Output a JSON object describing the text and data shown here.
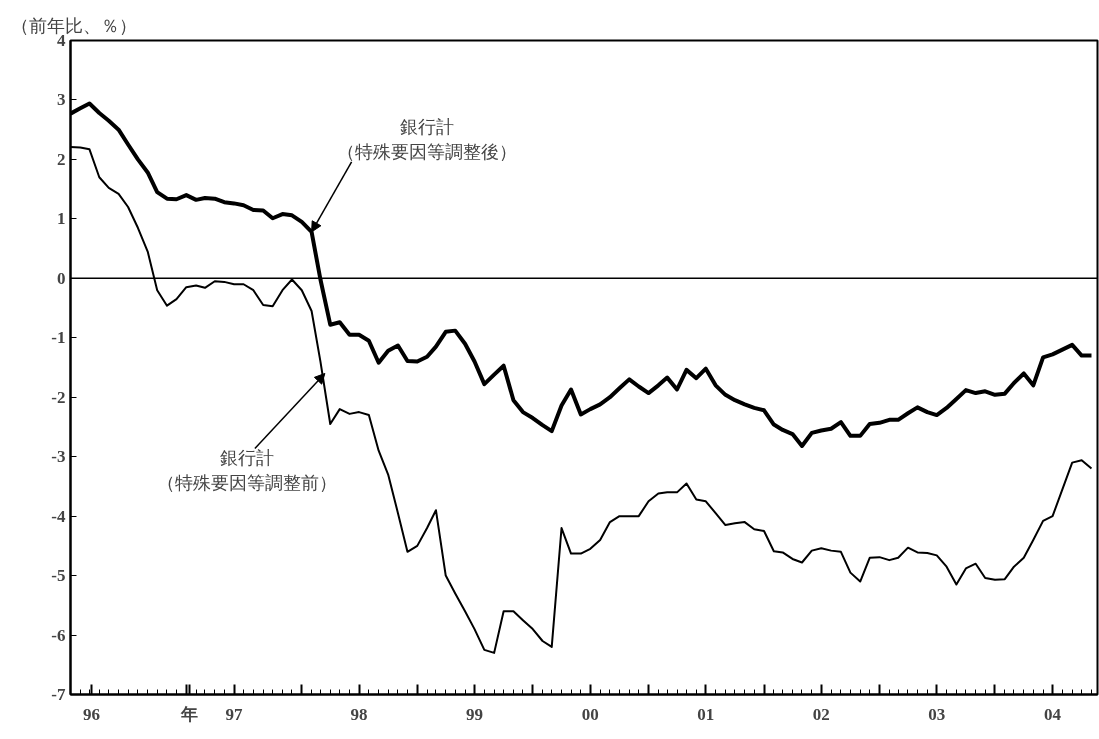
{
  "chart_data": {
    "type": "line",
    "ylabel": "（前年比、％）",
    "x": [
      "1996-01",
      "1996-02",
      "1996-03",
      "1996-04",
      "1996-05",
      "1996-06",
      "1996-07",
      "1996-08",
      "1996-09",
      "1996-10",
      "1996-11",
      "1996-12",
      "1997-01",
      "1997-02",
      "1997-03",
      "1997-04",
      "1997-05",
      "1997-06",
      "1997-07",
      "1997-08",
      "1997-09",
      "1997-10",
      "1997-11",
      "1997-12",
      "1998-01",
      "1998-02",
      "1998-03",
      "1998-04",
      "1998-05",
      "1998-06",
      "1998-07",
      "1998-08",
      "1998-09",
      "1998-10",
      "1998-11",
      "1998-12",
      "1999-01",
      "1999-02",
      "1999-03",
      "1999-04",
      "1999-05",
      "1999-06",
      "1999-07",
      "1999-08",
      "1999-09",
      "1999-10",
      "1999-11",
      "1999-12",
      "2000-01",
      "2000-02",
      "2000-03",
      "2000-04",
      "2000-05",
      "2000-06",
      "2000-07",
      "2000-08",
      "2000-09",
      "2000-10",
      "2000-11",
      "2000-12",
      "2001-01",
      "2001-02",
      "2001-03",
      "2001-04",
      "2001-05",
      "2001-06",
      "2001-07",
      "2001-08",
      "2001-09",
      "2001-10",
      "2001-11",
      "2001-12",
      "2002-01",
      "2002-02",
      "2002-03",
      "2002-04",
      "2002-05",
      "2002-06",
      "2002-07",
      "2002-08",
      "2002-09",
      "2002-10",
      "2002-11",
      "2002-12",
      "2003-01",
      "2003-02",
      "2003-03",
      "2003-04",
      "2003-05",
      "2003-06",
      "2003-07",
      "2003-08",
      "2003-09",
      "2003-10",
      "2003-11",
      "2003-12",
      "2004-01",
      "2004-02",
      "2004-03",
      "2004-04",
      "2004-05",
      "2004-06",
      "2004-07",
      "2004-08",
      "2004-09",
      "2004-10",
      "2004-11"
    ],
    "series": [
      {
        "color": "#000000",
        "values": [
          2.77,
          2.86,
          2.94,
          2.78,
          2.65,
          2.5,
          2.25,
          2.0,
          1.78,
          1.45,
          1.34,
          1.33,
          1.4,
          1.32,
          1.35,
          1.34,
          1.28,
          1.26,
          1.23,
          1.15,
          1.14,
          1.01,
          1.08,
          1.06,
          0.95,
          0.78,
          -0.02,
          -0.78,
          -0.74,
          -0.95,
          -0.95,
          -1.05,
          -1.42,
          -1.22,
          -1.13,
          -1.39,
          -1.4,
          -1.32,
          -1.15,
          -0.9,
          -0.88,
          -1.1,
          -1.4,
          -1.78,
          -1.62,
          -1.47,
          -2.05,
          -2.25,
          -2.35,
          -2.47,
          -2.57,
          -2.14,
          -1.87,
          -2.29,
          -2.2,
          -2.12,
          -2.0,
          -1.85,
          -1.7,
          -1.82,
          -1.93,
          -1.8,
          -1.67,
          -1.87,
          -1.54,
          -1.68,
          -1.52,
          -1.8,
          -1.96,
          -2.05,
          -2.12,
          -2.18,
          -2.22,
          -2.46,
          -2.55,
          -2.62,
          -2.82,
          -2.6,
          -2.56,
          -2.53,
          -2.42,
          -2.65,
          -2.65,
          -2.45,
          -2.43,
          -2.38,
          -2.38,
          -2.27,
          -2.17,
          -2.25,
          -2.3,
          -2.18,
          -2.03,
          -1.88,
          -1.93,
          -1.9,
          -1.96,
          -1.94,
          -1.76,
          -1.6,
          -1.8,
          -1.33,
          -1.28,
          -1.2,
          -1.12,
          -1.3,
          -1.3
        ]
      },
      {
        "color": "#000000",
        "values": [
          2.21,
          2.2,
          2.17,
          1.7,
          1.52,
          1.42,
          1.2,
          0.85,
          0.45,
          -0.2,
          -0.46,
          -0.35,
          -0.15,
          -0.12,
          -0.16,
          -0.05,
          -0.06,
          -0.1,
          -0.1,
          -0.2,
          -0.45,
          -0.47,
          -0.2,
          -0.02,
          -0.2,
          -0.55,
          -1.4,
          -2.45,
          -2.2,
          -2.28,
          -2.25,
          -2.3,
          -2.9,
          -3.3,
          -3.95,
          -4.6,
          -4.5,
          -4.2,
          -3.9,
          -5.0,
          -5.3,
          -5.6,
          -5.9,
          -6.25,
          -6.3,
          -5.6,
          -5.6,
          -5.75,
          -5.9,
          -6.1,
          -6.2,
          -4.2,
          -4.63,
          -4.63,
          -4.55,
          -4.4,
          -4.1,
          -4.0,
          -4.0,
          -4.0,
          -3.75,
          -3.62,
          -3.6,
          -3.6,
          -3.45,
          -3.72,
          -3.75,
          -3.95,
          -4.15,
          -4.12,
          -4.1,
          -4.22,
          -4.25,
          -4.59,
          -4.61,
          -4.72,
          -4.78,
          -4.58,
          -4.54,
          -4.58,
          -4.6,
          -4.95,
          -5.1,
          -4.7,
          -4.69,
          -4.74,
          -4.7,
          -4.53,
          -4.61,
          -4.62,
          -4.66,
          -4.85,
          -5.15,
          -4.88,
          -4.8,
          -5.04,
          -5.07,
          -5.06,
          -4.85,
          -4.7,
          -4.4,
          -4.08,
          -4.0,
          -3.55,
          -3.1,
          -3.06,
          -3.2
        ]
      }
    ],
    "annotations": [
      "銀行計",
      {
        "text": "（特殊要因等調整後）",
        "x": "1998-02",
        "y": 0.78
      },
      {
        "text": "銀行計",
        "x": "1998-03-15",
        "y": -1.6
      },
      "（特殊要因等調整前）"
    ],
    "xlim": [
      "1996-01-01",
      "2004-11-20"
    ],
    "xticks": [
      {
        "value": "1996-03-07",
        "label": "96"
      },
      {
        "value": "1997-01-10",
        "label": "年"
      },
      {
        "value": "1997-06",
        "label": "97"
      },
      {
        "value": "1998-07",
        "label": "98"
      },
      {
        "value": "1999-07",
        "label": "99"
      },
      {
        "value": "2000-07",
        "label": "00"
      },
      {
        "value": "2001-07",
        "label": "01"
      },
      {
        "value": "2002-07",
        "label": "02"
      },
      {
        "value": "2003-07",
        "label": "03"
      },
      {
        "value": "2004-07",
        "label": "04"
      },
      {
        "value": "1997-01",
        "label": null
      },
      {
        "value": "1998-01",
        "label": null
      },
      {
        "value": "1999-01",
        "label": null
      },
      {
        "value": "2000-01",
        "label": null
      },
      {
        "value": "2001-01",
        "label": null
      },
      {
        "value": "2002-01",
        "label": null
      },
      {
        "value": "2003-01",
        "label": null
      },
      {
        "value": "2004-01",
        "label": null
      }
    ],
    "ylim": [
      -7,
      4
    ],
    "yticks": [
      -7,
      -6,
      -5,
      -4,
      -3,
      -2,
      -1,
      0,
      1,
      2,
      3,
      4
    ],
    "ref_lines": [
      {
        "axis": "y",
        "value": 0,
        "label": null
      }
    ],
    "grid": false,
    "marker": "none",
    "line_style": "solid"
  }
}
